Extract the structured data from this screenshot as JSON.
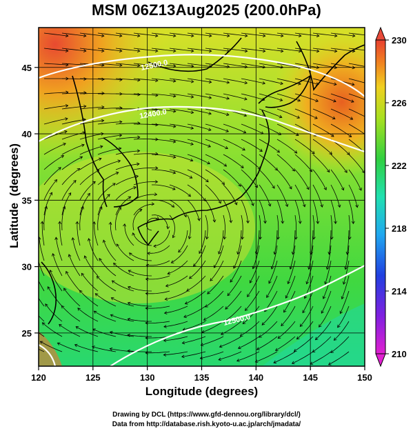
{
  "title": "MSM 06Z13Aug2025 (200.0hPa)",
  "x_axis": {
    "label": "Longitude (degrees)",
    "ticks": [
      "120",
      "125",
      "130",
      "135",
      "140",
      "145",
      "150"
    ],
    "values": [
      120,
      125,
      130,
      135,
      140,
      145,
      150
    ]
  },
  "y_axis": {
    "label": "Latitude  (degrees)",
    "ticks": [
      "25",
      "30",
      "35",
      "40",
      "45"
    ],
    "values": [
      25,
      30,
      35,
      40,
      45
    ]
  },
  "colorbar": {
    "ticks": [
      "230",
      "226",
      "222",
      "218",
      "214",
      "210"
    ],
    "values": [
      230,
      226,
      222,
      218,
      214,
      210
    ],
    "min": 210,
    "max": 230
  },
  "contours": [
    {
      "label": "12500.0"
    },
    {
      "label": "12400.0"
    },
    {
      "label": "12500.0"
    }
  ],
  "credits": {
    "line1": "Drawing by DCL (https://www.gfd-dennou.org/library/dcl/)",
    "line2": "Data from http://database.rish.kyoto-u.ac.jp/arch/jmadata/"
  },
  "colors": {
    "warm": "#e8503a",
    "mid": "#28d040",
    "cool": "#20d8b8",
    "contour": "#ffffff"
  }
}
